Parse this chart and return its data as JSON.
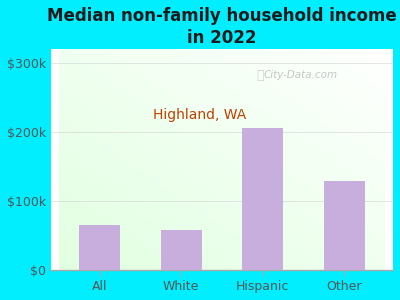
{
  "title": "Median non-family household income\nin 2022",
  "subtitle": "Highland, WA",
  "categories": [
    "All",
    "White",
    "Hispanic",
    "Other"
  ],
  "values": [
    65000,
    58000,
    205000,
    128000
  ],
  "bar_color": "#c8aedd",
  "title_fontsize": 12,
  "subtitle_fontsize": 10,
  "subtitle_color": "#c04000",
  "title_color": "#1a1a1a",
  "tick_color": "#555555",
  "bg_outer": "#00eeff",
  "ylim": [
    0,
    320000
  ],
  "yticks": [
    0,
    100000,
    200000,
    300000
  ],
  "ytick_labels": [
    "$0",
    "$100k",
    "$200k",
    "$300k"
  ],
  "watermark": "City-Data.com",
  "grid_color": "#cccccc",
  "axis_line_color": "#aaaaaa",
  "chart_bg_colors": [
    "#e8f5e8",
    "#ffffff",
    "#e8f5e8"
  ],
  "bar_width": 0.5
}
